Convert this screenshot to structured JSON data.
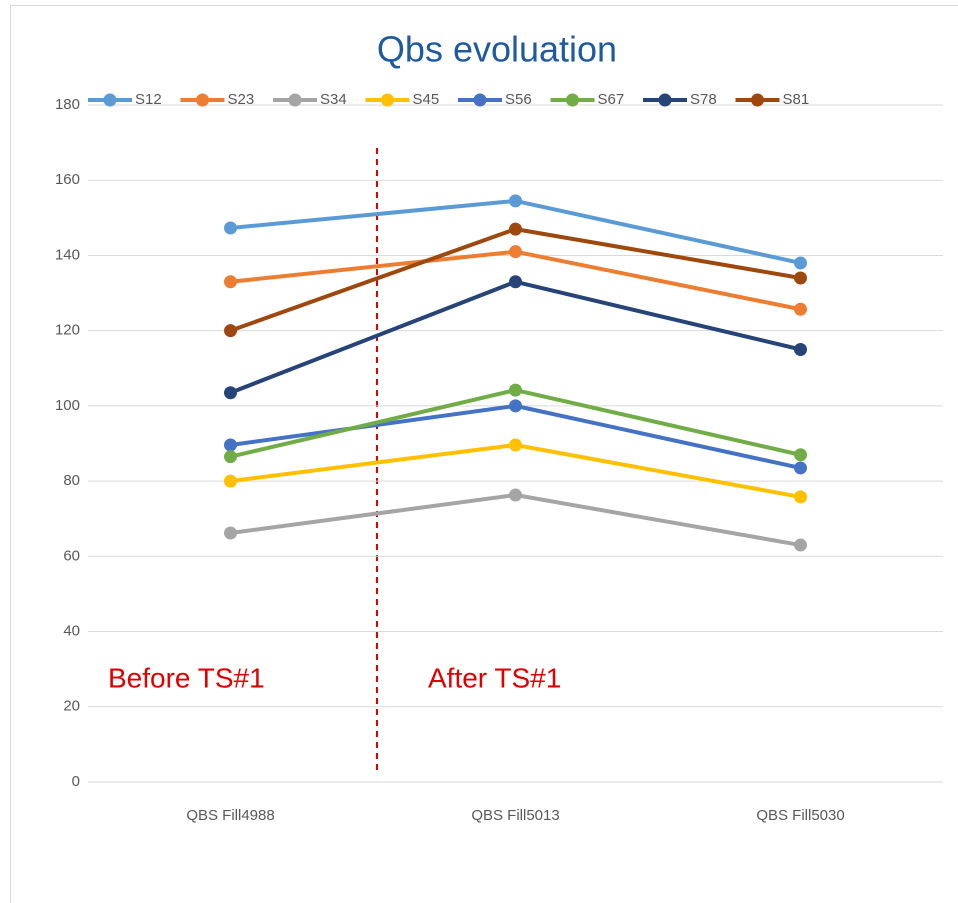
{
  "chart_data": {
    "type": "line",
    "title": "Qbs evoluation",
    "categories": [
      "QBS Fill4988",
      "QBS Fill5013",
      "QBS Fill5030"
    ],
    "series": [
      {
        "name": "S12",
        "color": "#5b9bd5",
        "values": [
          147.3,
          154.5,
          138
        ]
      },
      {
        "name": "S23",
        "color": "#ed7d31",
        "values": [
          133,
          141,
          125.7
        ]
      },
      {
        "name": "S34",
        "color": "#a5a5a5",
        "values": [
          66.2,
          76.3,
          63
        ]
      },
      {
        "name": "S45",
        "color": "#ffc000",
        "values": [
          80,
          89.6,
          75.8
        ]
      },
      {
        "name": "S56",
        "color": "#4472c4",
        "values": [
          89.6,
          100,
          83.5
        ]
      },
      {
        "name": "S67",
        "color": "#70ad47",
        "values": [
          86.5,
          104.2,
          87
        ]
      },
      {
        "name": "S78",
        "color": "#264478",
        "values": [
          103.5,
          133,
          115
        ]
      },
      {
        "name": "S81",
        "color": "#9e480e",
        "values": [
          120,
          147,
          134
        ]
      }
    ],
    "ylim": [
      0,
      180
    ],
    "yticks": [
      0,
      20,
      40,
      60,
      80,
      100,
      120,
      140,
      160,
      180
    ],
    "grid": true,
    "legend": "top",
    "annotations": [
      "Before TS#1",
      "After TS#1"
    ]
  }
}
